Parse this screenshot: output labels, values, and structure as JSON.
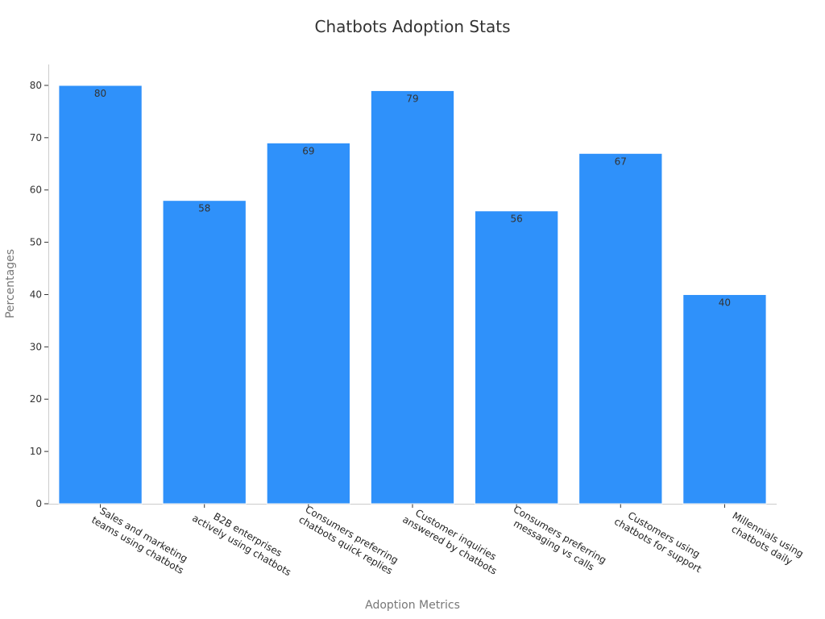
{
  "chart_data": {
    "type": "bar",
    "title": "Chatbots Adoption Stats",
    "xlabel": "Adoption Metrics",
    "ylabel": "Percentages",
    "categories": [
      [
        "Sales and marketing",
        "teams using chatbots"
      ],
      [
        "B2B enterprises",
        "actively using chatbots"
      ],
      [
        "Consumers preferring",
        "chatbots quick replies"
      ],
      [
        "Customer inquiries",
        "answered by chatbots"
      ],
      [
        "Consumers preferring",
        "messaging vs calls"
      ],
      [
        "Customers using",
        "chatbots for support"
      ],
      [
        "Millennials using",
        "chatbots daily"
      ]
    ],
    "values": [
      80,
      58,
      69,
      79,
      56,
      67,
      40
    ],
    "ylim": [
      0,
      84
    ],
    "yticks": [
      0,
      10,
      20,
      30,
      40,
      50,
      60,
      70,
      80
    ],
    "grid": false,
    "bar_color": "#2f91fa",
    "data_labels": true
  }
}
